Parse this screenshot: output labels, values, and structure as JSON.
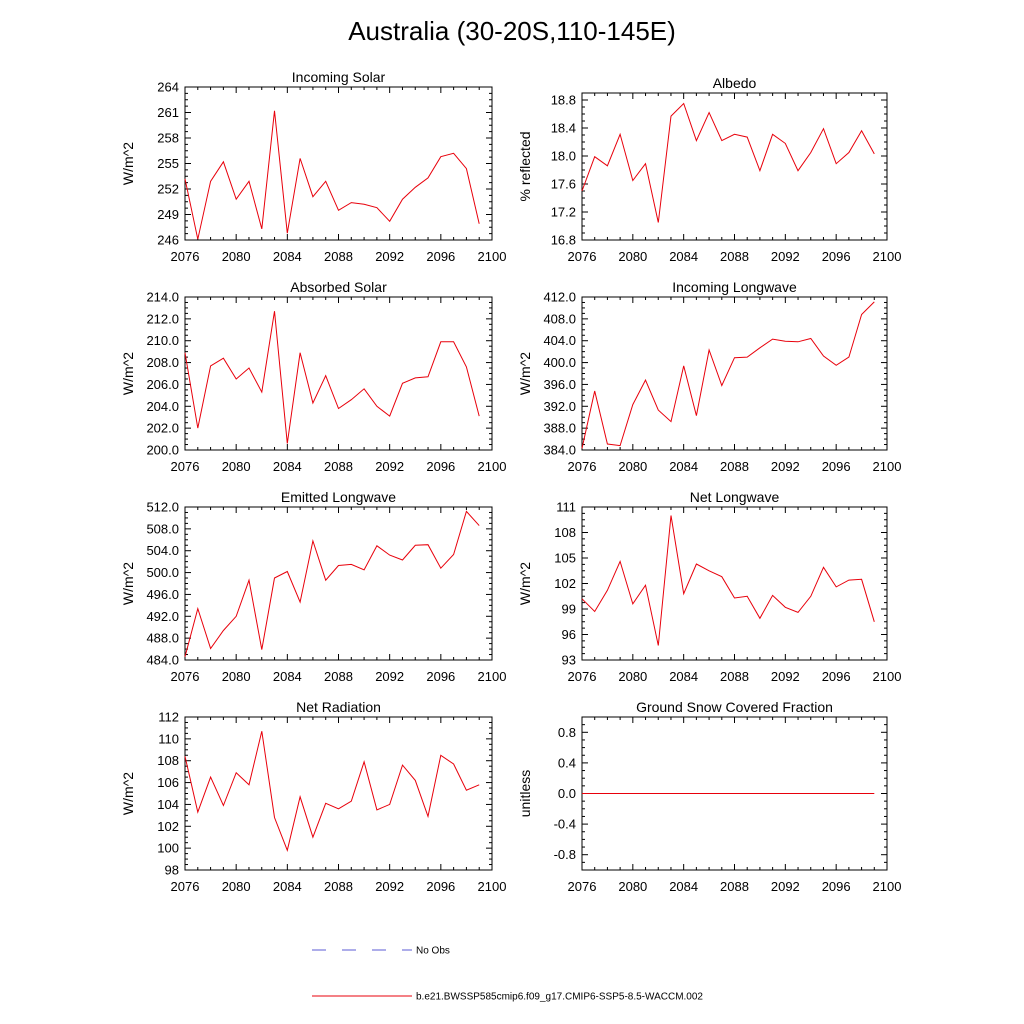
{
  "figure": {
    "title": "Australia (30-20S,110-145E)",
    "legend": {
      "obs_label": "No Obs",
      "model_label": "b.e21.BWSSP585cmip6.f09_g17.CMIP6-SSP5-8.5-WACCM.002",
      "colors": {
        "obs": "#5b5bd6",
        "model": "#e8000b"
      }
    }
  },
  "chart_data": [
    {
      "type": "line",
      "title": "Incoming Solar",
      "ylabel": "W/m^2",
      "xlim": [
        2076,
        2100
      ],
      "ylim": [
        246,
        264
      ],
      "xticks": [
        2076,
        2080,
        2084,
        2088,
        2092,
        2096,
        2100
      ],
      "yticks": [
        "246",
        "249",
        "252",
        "255",
        "258",
        "261",
        "264"
      ],
      "series": [
        {
          "color": "#e8000b",
          "x": [
            2076,
            2077,
            2078,
            2079,
            2080,
            2081,
            2082,
            2083,
            2084,
            2085,
            2086,
            2087,
            2088,
            2089,
            2090,
            2091,
            2092,
            2093,
            2094,
            2095,
            2096,
            2097,
            2098,
            2099
          ],
          "y": [
            253.2,
            246.1,
            252.9,
            255.2,
            250.8,
            252.9,
            247.3,
            261.2,
            246.8,
            255.6,
            251.1,
            252.9,
            249.5,
            250.4,
            250.2,
            249.8,
            248.2,
            250.8,
            252.2,
            253.3,
            255.8,
            256.2,
            254.4,
            247.9
          ]
        }
      ]
    },
    {
      "type": "line",
      "title": "Albedo",
      "ylabel": "% reflected",
      "xlim": [
        2076,
        2100
      ],
      "ylim": [
        16.8,
        18.9
      ],
      "xticks": [
        2076,
        2080,
        2084,
        2088,
        2092,
        2096,
        2100
      ],
      "yticks": [
        "16.8",
        "17.2",
        "17.6",
        "18.0",
        "18.4",
        "18.8"
      ],
      "series": [
        {
          "color": "#e8000b",
          "x": [
            2076,
            2077,
            2078,
            2079,
            2080,
            2081,
            2082,
            2083,
            2084,
            2085,
            2086,
            2087,
            2088,
            2089,
            2090,
            2091,
            2092,
            2093,
            2094,
            2095,
            2096,
            2097,
            2098,
            2099
          ],
          "y": [
            17.5,
            17.99,
            17.86,
            18.31,
            17.65,
            17.89,
            17.05,
            18.57,
            18.75,
            18.22,
            18.62,
            18.22,
            18.31,
            18.27,
            17.79,
            18.31,
            18.18,
            17.79,
            18.05,
            18.39,
            17.89,
            18.05,
            18.36,
            18.03
          ]
        }
      ]
    },
    {
      "type": "line",
      "title": "Absorbed Solar",
      "ylabel": "W/m^2",
      "xlim": [
        2076,
        2100
      ],
      "ylim": [
        200,
        214
      ],
      "xticks": [
        2076,
        2080,
        2084,
        2088,
        2092,
        2096,
        2100
      ],
      "yticks": [
        "200.0",
        "202.0",
        "204.0",
        "206.0",
        "208.0",
        "210.0",
        "212.0",
        "214.0"
      ],
      "series": [
        {
          "color": "#e8000b",
          "x": [
            2076,
            2077,
            2078,
            2079,
            2080,
            2081,
            2082,
            2083,
            2084,
            2085,
            2086,
            2087,
            2088,
            2089,
            2090,
            2091,
            2092,
            2093,
            2094,
            2095,
            2096,
            2097,
            2098,
            2099
          ],
          "y": [
            208.9,
            202.0,
            207.7,
            208.4,
            206.5,
            207.5,
            205.3,
            212.7,
            200.6,
            208.9,
            204.3,
            206.8,
            203.8,
            204.6,
            205.6,
            204.0,
            203.1,
            206.1,
            206.6,
            206.7,
            209.9,
            209.9,
            207.6,
            203.1
          ]
        }
      ]
    },
    {
      "type": "line",
      "title": "Incoming Longwave",
      "ylabel": "W/m^2",
      "xlim": [
        2076,
        2100
      ],
      "ylim": [
        384,
        412
      ],
      "xticks": [
        2076,
        2080,
        2084,
        2088,
        2092,
        2096,
        2100
      ],
      "yticks": [
        "384.0",
        "388.0",
        "392.0",
        "396.0",
        "400.0",
        "404.0",
        "408.0",
        "412.0"
      ],
      "series": [
        {
          "color": "#e8000b",
          "x": [
            2076,
            2077,
            2078,
            2079,
            2080,
            2081,
            2082,
            2083,
            2084,
            2085,
            2086,
            2087,
            2088,
            2089,
            2090,
            2091,
            2092,
            2093,
            2094,
            2095,
            2096,
            2097,
            2098,
            2099
          ],
          "y": [
            384.3,
            394.8,
            385.1,
            384.8,
            392.3,
            396.8,
            391.3,
            389.2,
            399.4,
            390.3,
            402.3,
            395.8,
            400.9,
            401.0,
            402.7,
            404.3,
            403.9,
            403.8,
            404.4,
            401.2,
            399.5,
            401.0,
            408.8,
            411.1
          ]
        }
      ]
    },
    {
      "type": "line",
      "title": "Emitted Longwave",
      "ylabel": "W/m^2",
      "xlim": [
        2076,
        2100
      ],
      "ylim": [
        484,
        512
      ],
      "xticks": [
        2076,
        2080,
        2084,
        2088,
        2092,
        2096,
        2100
      ],
      "yticks": [
        "484.0",
        "488.0",
        "492.0",
        "496.0",
        "500.0",
        "504.0",
        "508.0",
        "512.0"
      ],
      "series": [
        {
          "color": "#e8000b",
          "x": [
            2076,
            2077,
            2078,
            2079,
            2080,
            2081,
            2082,
            2083,
            2084,
            2085,
            2086,
            2087,
            2088,
            2089,
            2090,
            2091,
            2092,
            2093,
            2094,
            2095,
            2096,
            2097,
            2098,
            2099
          ],
          "y": [
            484.6,
            493.4,
            486.1,
            489.4,
            492.0,
            498.6,
            485.9,
            499.0,
            500.2,
            494.6,
            505.8,
            498.6,
            501.3,
            501.5,
            500.5,
            504.9,
            503.2,
            502.3,
            505.0,
            505.1,
            500.8,
            503.3,
            511.2,
            508.6
          ]
        }
      ]
    },
    {
      "type": "line",
      "title": "Net Longwave",
      "ylabel": "W/m^2",
      "xlim": [
        2076,
        2100
      ],
      "ylim": [
        93,
        111
      ],
      "xticks": [
        2076,
        2080,
        2084,
        2088,
        2092,
        2096,
        2100
      ],
      "yticks": [
        "93",
        "96",
        "99",
        "102",
        "105",
        "108",
        "111"
      ],
      "series": [
        {
          "color": "#e8000b",
          "x": [
            2076,
            2077,
            2078,
            2079,
            2080,
            2081,
            2082,
            2083,
            2084,
            2085,
            2086,
            2087,
            2088,
            2089,
            2090,
            2091,
            2092,
            2093,
            2094,
            2095,
            2096,
            2097,
            2098,
            2099
          ],
          "y": [
            100.2,
            98.7,
            101.2,
            104.6,
            99.6,
            101.8,
            94.7,
            110.0,
            100.8,
            104.3,
            103.5,
            102.8,
            100.3,
            100.5,
            97.9,
            100.6,
            99.2,
            98.6,
            100.5,
            103.9,
            101.6,
            102.4,
            102.5,
            97.5
          ]
        }
      ]
    },
    {
      "type": "line",
      "title": "Net Radiation",
      "ylabel": "W/m^2",
      "xlim": [
        2076,
        2100
      ],
      "ylim": [
        98,
        112
      ],
      "xticks": [
        2076,
        2080,
        2084,
        2088,
        2092,
        2096,
        2100
      ],
      "yticks": [
        "98",
        "100",
        "102",
        "104",
        "106",
        "108",
        "110",
        "112"
      ],
      "series": [
        {
          "color": "#e8000b",
          "x": [
            2076,
            2077,
            2078,
            2079,
            2080,
            2081,
            2082,
            2083,
            2084,
            2085,
            2086,
            2087,
            2088,
            2089,
            2090,
            2091,
            2092,
            2093,
            2094,
            2095,
            2096,
            2097,
            2098,
            2099
          ],
          "y": [
            108.4,
            103.3,
            106.5,
            103.9,
            106.9,
            105.8,
            110.7,
            102.8,
            99.8,
            104.7,
            101.0,
            104.1,
            103.6,
            104.3,
            107.9,
            103.5,
            104.0,
            107.6,
            106.2,
            102.9,
            108.5,
            107.7,
            105.3,
            105.8
          ]
        }
      ]
    },
    {
      "type": "line",
      "title": "Ground Snow Covered Fraction",
      "ylabel": "unitless",
      "xlim": [
        2076,
        2100
      ],
      "ylim": [
        -1.0,
        1.0
      ],
      "xticks": [
        2076,
        2080,
        2084,
        2088,
        2092,
        2096,
        2100
      ],
      "yticks": [
        "-0.8",
        "-0.4",
        "0.0",
        "0.4",
        "0.8"
      ],
      "series": [
        {
          "color": "#e8000b",
          "x": [
            2076,
            2077,
            2078,
            2079,
            2080,
            2081,
            2082,
            2083,
            2084,
            2085,
            2086,
            2087,
            2088,
            2089,
            2090,
            2091,
            2092,
            2093,
            2094,
            2095,
            2096,
            2097,
            2098,
            2099
          ],
          "y": [
            0,
            0,
            0,
            0,
            0,
            0,
            0,
            0,
            0,
            0,
            0,
            0,
            0,
            0,
            0,
            0,
            0,
            0,
            0,
            0,
            0,
            0,
            0,
            0
          ]
        }
      ]
    }
  ]
}
